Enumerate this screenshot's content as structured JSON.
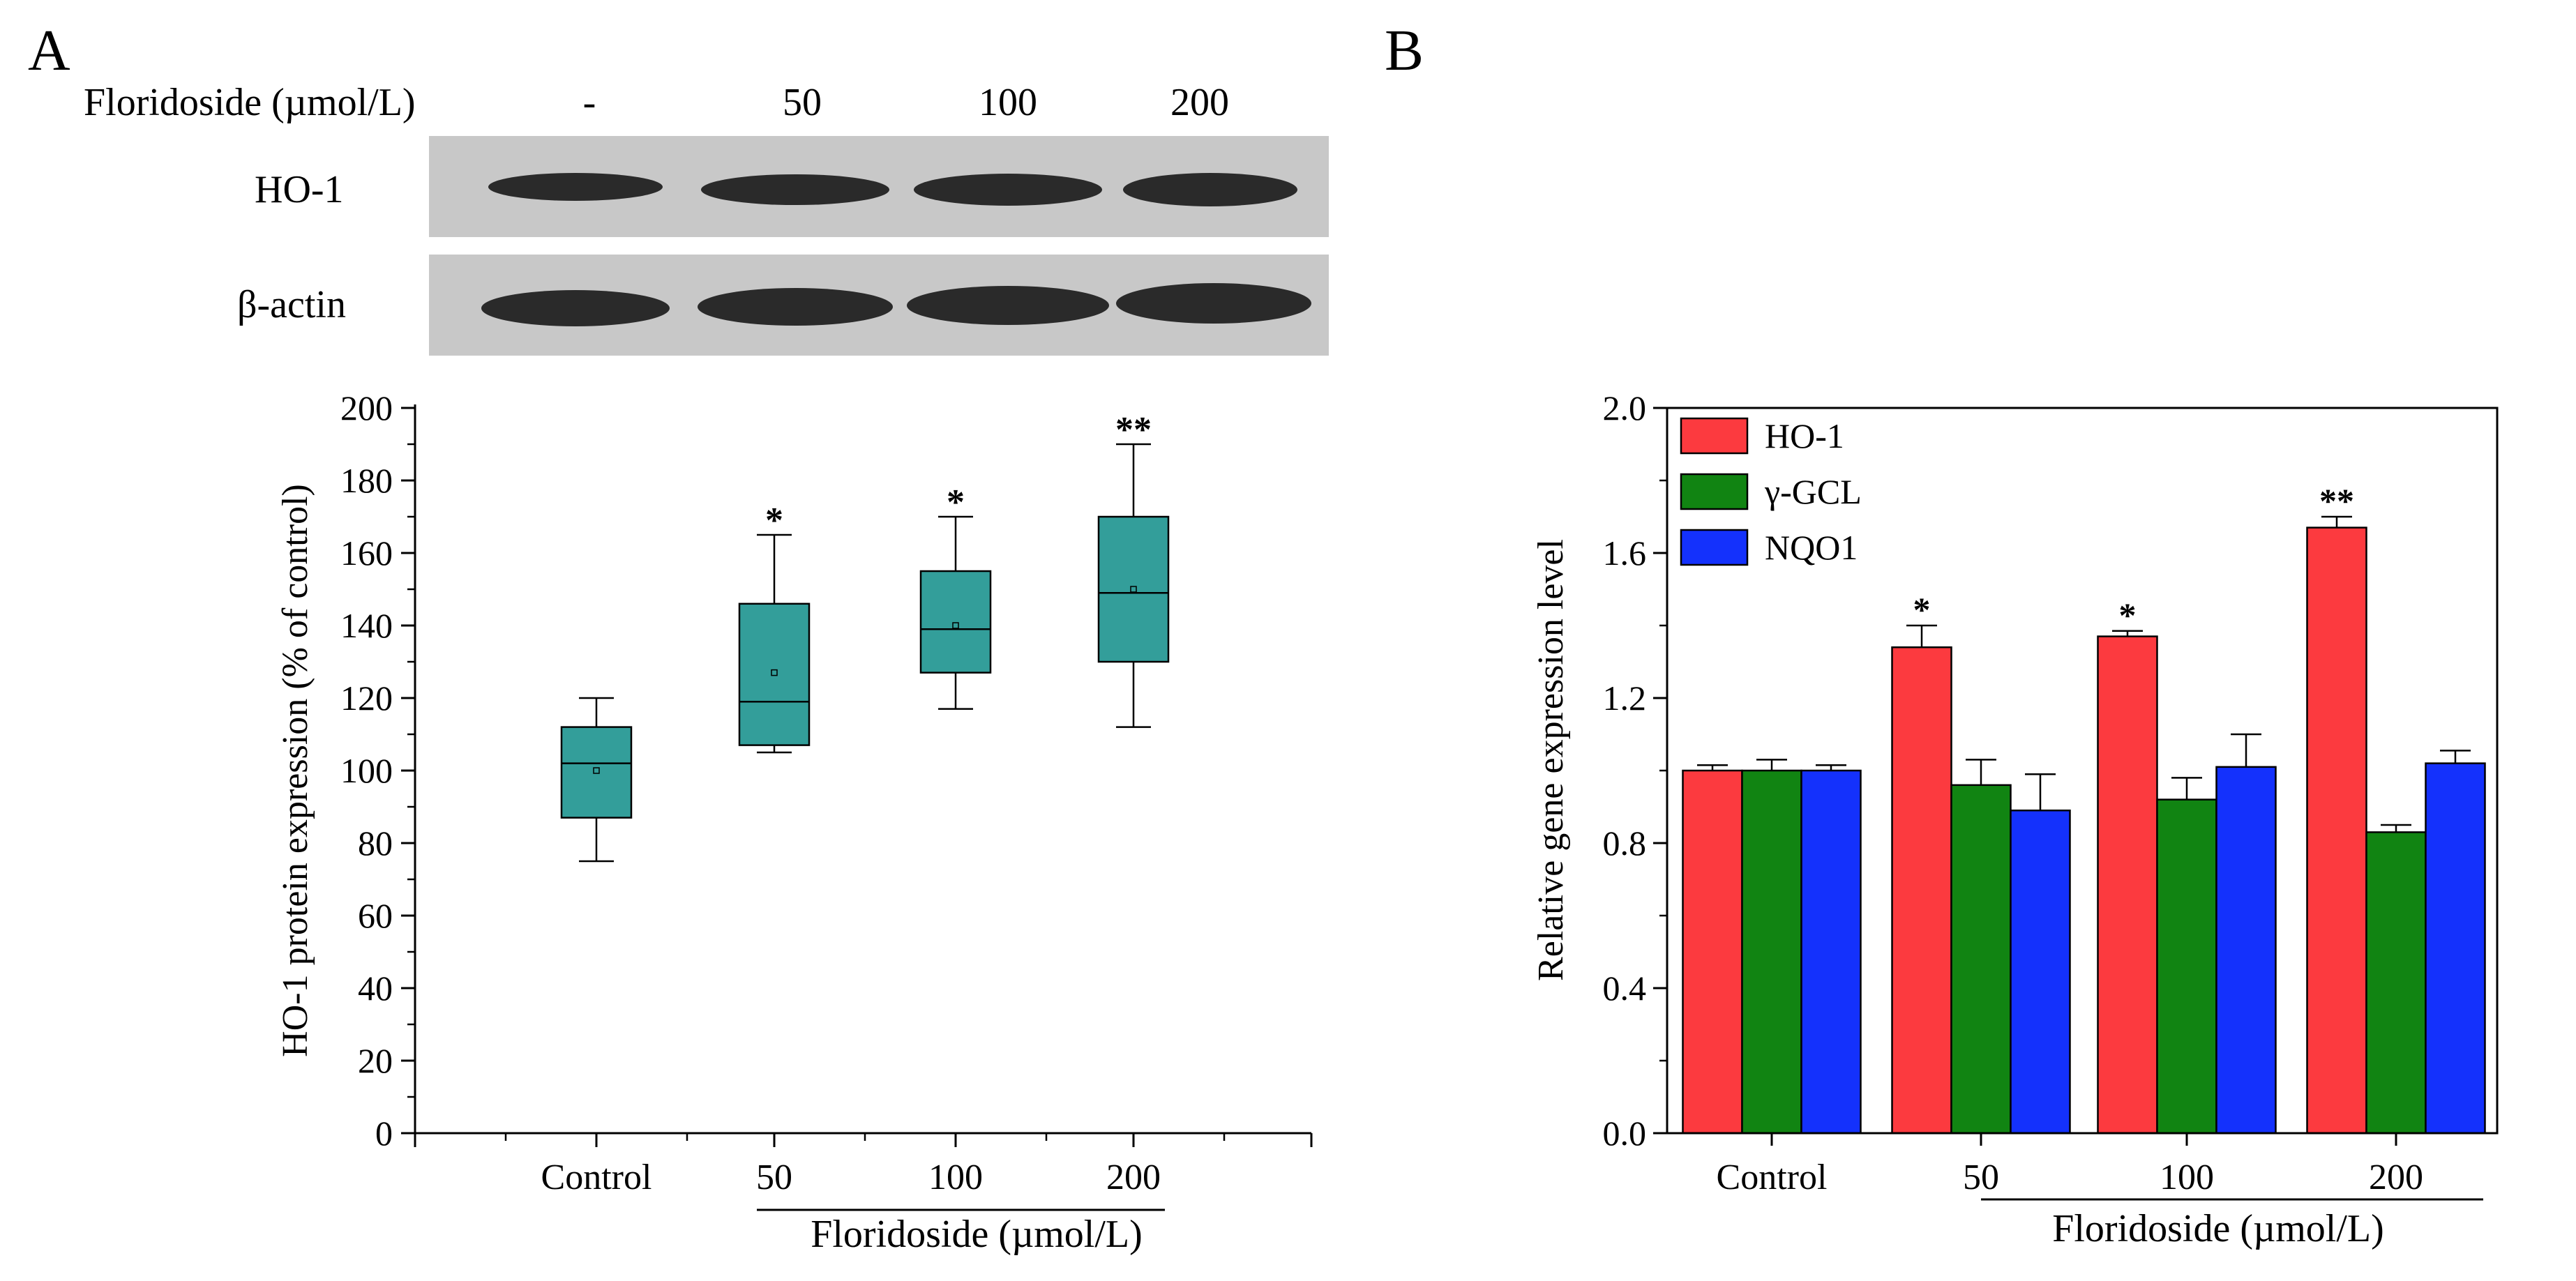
{
  "panel_a": {
    "letter": "A",
    "blot": {
      "treatment_label": "Floridoside (µmol/L)",
      "doses": [
        "-",
        "50",
        "100",
        "200"
      ],
      "rows": [
        "HO-1",
        "β-actin"
      ]
    }
  },
  "panel_b": {
    "letter": "B"
  },
  "chart_data": [
    {
      "type": "box",
      "panel": "A",
      "ylabel": "HO-1 protein expression (% of control)",
      "xlabel": "Floridoside (µmol/L)",
      "categories": [
        "Control",
        "50",
        "100",
        "200"
      ],
      "ylim": [
        0,
        200
      ],
      "yticks": [
        "0",
        "20",
        "40",
        "60",
        "80",
        "100",
        "120",
        "140",
        "160",
        "180",
        "200"
      ],
      "boxes": [
        {
          "min": 75,
          "q1": 87,
          "median": 102,
          "q3": 112,
          "max": 120,
          "mean": 100,
          "sig": ""
        },
        {
          "min": 105,
          "q1": 107,
          "median": 119,
          "q3": 146,
          "max": 165,
          "mean": 127,
          "sig": "*"
        },
        {
          "min": 117,
          "q1": 127,
          "median": 139,
          "q3": 155,
          "max": 170,
          "mean": 140,
          "sig": "*"
        },
        {
          "min": 112,
          "q1": 130,
          "median": 149,
          "q3": 170,
          "max": 190,
          "mean": 150,
          "sig": "**"
        }
      ],
      "box_color": "#339e9a",
      "grid": false
    },
    {
      "type": "bar",
      "panel": "B",
      "ylabel": "Relative gene expression level",
      "xlabel": "Floridoside (µmol/L)",
      "categories": [
        "Control",
        "50",
        "100",
        "200"
      ],
      "ylim": [
        0,
        2.0
      ],
      "yticks": [
        "0.0",
        "0.4",
        "0.8",
        "1.2",
        "1.6",
        "2.0"
      ],
      "series": [
        {
          "name": "HO-1",
          "color": "#fc3a3f",
          "values": [
            1.0,
            1.34,
            1.37,
            1.67
          ],
          "errors": [
            0.015,
            0.06,
            0.015,
            0.03
          ]
        },
        {
          "name": "γ-GCL",
          "color": "#118412",
          "values": [
            1.0,
            0.96,
            0.92,
            0.83
          ],
          "errors": [
            0.03,
            0.07,
            0.06,
            0.02
          ]
        },
        {
          "name": "NQO1",
          "color": "#1431fc",
          "values": [
            1.0,
            0.89,
            1.01,
            1.02
          ],
          "errors": [
            0.015,
            0.1,
            0.09,
            0.035
          ]
        }
      ],
      "significance": [
        "",
        "*",
        "*",
        "**"
      ],
      "legend": "top-left",
      "grid": false
    }
  ]
}
